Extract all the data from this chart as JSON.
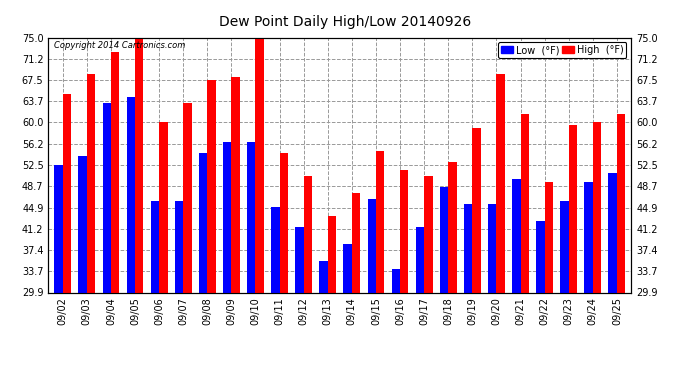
{
  "title": "Dew Point Daily High/Low 20140926",
  "copyright": "Copyright 2014 Cartronics.com",
  "dates": [
    "09/02",
    "09/03",
    "09/04",
    "09/05",
    "09/06",
    "09/07",
    "09/08",
    "09/09",
    "09/10",
    "09/11",
    "09/12",
    "09/13",
    "09/14",
    "09/15",
    "09/16",
    "09/17",
    "09/18",
    "09/19",
    "09/20",
    "09/21",
    "09/22",
    "09/23",
    "09/24",
    "09/25"
  ],
  "high": [
    65.0,
    68.5,
    72.5,
    76.5,
    60.0,
    63.5,
    67.5,
    68.0,
    75.0,
    54.5,
    50.5,
    43.5,
    47.5,
    55.0,
    51.5,
    50.5,
    53.0,
    59.0,
    68.5,
    61.5,
    49.5,
    59.5,
    60.0,
    61.5
  ],
  "low": [
    52.5,
    54.0,
    63.5,
    64.5,
    46.0,
    46.0,
    54.5,
    56.5,
    56.5,
    45.0,
    41.5,
    35.5,
    38.5,
    46.5,
    34.0,
    41.5,
    48.5,
    45.5,
    45.5,
    50.0,
    42.5,
    46.0,
    49.5,
    51.0
  ],
  "ylim_min": 29.9,
  "ylim_max": 75.0,
  "yticks": [
    29.9,
    33.7,
    37.4,
    41.2,
    44.9,
    48.7,
    52.5,
    56.2,
    60.0,
    63.7,
    67.5,
    71.2,
    75.0
  ],
  "ytick_labels": [
    "29.9",
    "33.7",
    "37.4",
    "41.2",
    "44.9",
    "48.7",
    "52.5",
    "56.2",
    "60.0",
    "63.7",
    "67.5",
    "71.2",
    "75.0"
  ],
  "high_color": "#FF0000",
  "low_color": "#0000FF",
  "bg_color": "#FFFFFF",
  "grid_color": "#999999",
  "bar_width": 0.35
}
